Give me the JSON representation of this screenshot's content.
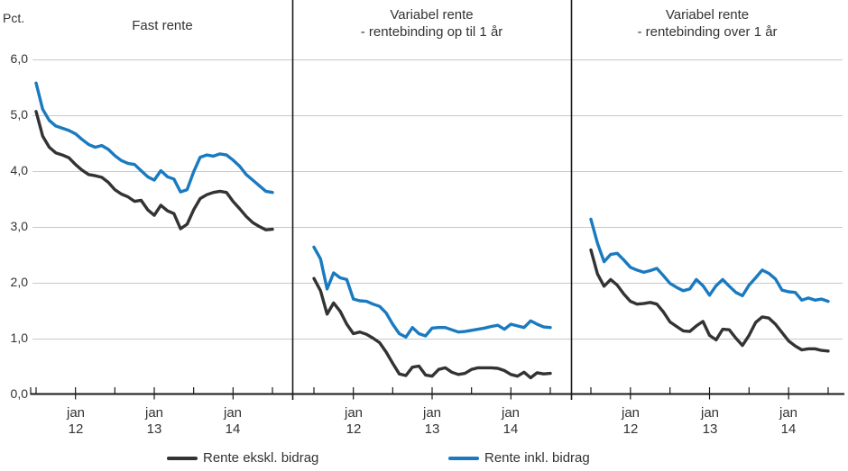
{
  "chart_data": {
    "type": "line",
    "ylabel": "Pct.",
    "ylim": [
      0.0,
      6.0
    ],
    "grid": "horizontal",
    "legend_position": "bottom",
    "y_ticks": [
      "6,0",
      "5,0",
      "4,0",
      "3,0",
      "2,0",
      "1,0",
      "0,0"
    ],
    "x_unit": "monthly observations, jul 2011 - jul 2014",
    "x_tick_years": [
      {
        "month": "jan",
        "year": "12"
      },
      {
        "month": "jan",
        "year": "13"
      },
      {
        "month": "jan",
        "year": "14"
      }
    ],
    "panels": [
      {
        "title_lines": [
          "Fast rente"
        ],
        "series": [
          {
            "name": "Rente ekskl. bidrag",
            "color": "#333333",
            "values": [
              5.06,
              4.62,
              4.42,
              4.32,
              4.28,
              4.23,
              4.11,
              4.01,
              3.93,
              3.91,
              3.88,
              3.79,
              3.66,
              3.58,
              3.53,
              3.45,
              3.47,
              3.3,
              3.2,
              3.38,
              3.28,
              3.23,
              2.96,
              3.04,
              3.3,
              3.5,
              3.57,
              3.61,
              3.63,
              3.61,
              3.45,
              3.32,
              3.18,
              3.07,
              3.0,
              2.94,
              2.95
            ]
          },
          {
            "name": "Rente inkl. bidrag",
            "color": "#1A7AC0",
            "values": [
              5.57,
              5.1,
              4.9,
              4.8,
              4.76,
              4.72,
              4.66,
              4.56,
              4.47,
              4.42,
              4.45,
              4.38,
              4.27,
              4.18,
              4.13,
              4.11,
              4.0,
              3.89,
              3.83,
              4.0,
              3.89,
              3.85,
              3.62,
              3.66,
              3.98,
              4.24,
              4.28,
              4.26,
              4.3,
              4.28,
              4.19,
              4.08,
              3.93,
              3.83,
              3.73,
              3.63,
              3.61
            ]
          }
        ]
      },
      {
        "title_lines": [
          "Variabel rente",
          "- rentebinding op til 1 år"
        ],
        "series": [
          {
            "name": "Rente ekskl. bidrag",
            "color": "#333333",
            "values": [
              2.07,
              1.85,
              1.43,
              1.63,
              1.48,
              1.25,
              1.08,
              1.11,
              1.07,
              1.0,
              0.92,
              0.75,
              0.55,
              0.36,
              0.33,
              0.48,
              0.5,
              0.34,
              0.32,
              0.44,
              0.47,
              0.39,
              0.35,
              0.37,
              0.44,
              0.47,
              0.47,
              0.47,
              0.46,
              0.42,
              0.35,
              0.32,
              0.39,
              0.29,
              0.38,
              0.36,
              0.37
            ]
          },
          {
            "name": "Rente inkl. bidrag",
            "color": "#1A7AC0",
            "values": [
              2.63,
              2.42,
              1.88,
              2.17,
              2.08,
              2.05,
              1.7,
              1.67,
              1.66,
              1.61,
              1.57,
              1.45,
              1.25,
              1.08,
              1.02,
              1.19,
              1.08,
              1.04,
              1.18,
              1.19,
              1.19,
              1.15,
              1.11,
              1.12,
              1.14,
              1.16,
              1.18,
              1.21,
              1.23,
              1.16,
              1.25,
              1.22,
              1.19,
              1.31,
              1.25,
              1.2,
              1.19
            ]
          }
        ]
      },
      {
        "title_lines": [
          "Variabel rente",
          "- rentebinding over 1 år"
        ],
        "series": [
          {
            "name": "Rente ekskl. bidrag",
            "color": "#333333",
            "values": [
              2.58,
              2.15,
              1.93,
              2.05,
              1.95,
              1.79,
              1.66,
              1.61,
              1.62,
              1.64,
              1.61,
              1.47,
              1.29,
              1.21,
              1.13,
              1.12,
              1.22,
              1.3,
              1.05,
              0.97,
              1.16,
              1.15,
              1.0,
              0.87,
              1.05,
              1.28,
              1.38,
              1.36,
              1.25,
              1.1,
              0.95,
              0.86,
              0.79,
              0.81,
              0.81,
              0.78,
              0.77
            ]
          },
          {
            "name": "Rente inkl. bidrag",
            "color": "#1A7AC0",
            "values": [
              3.13,
              2.7,
              2.37,
              2.5,
              2.52,
              2.4,
              2.27,
              2.22,
              2.18,
              2.21,
              2.25,
              2.12,
              1.98,
              1.91,
              1.85,
              1.88,
              2.05,
              1.94,
              1.77,
              1.94,
              2.05,
              1.93,
              1.82,
              1.76,
              1.95,
              2.08,
              2.22,
              2.16,
              2.06,
              1.86,
              1.83,
              1.82,
              1.68,
              1.72,
              1.68,
              1.7,
              1.66
            ]
          }
        ]
      }
    ],
    "legend": [
      {
        "label": "Rente ekskl. bidrag",
        "color": "#333333"
      },
      {
        "label": "Rente inkl. bidrag",
        "color": "#1A7AC0"
      }
    ],
    "colors": {
      "gridline": "#c9c9c9",
      "axis": "#1a1a1a",
      "text": "#333333"
    }
  }
}
